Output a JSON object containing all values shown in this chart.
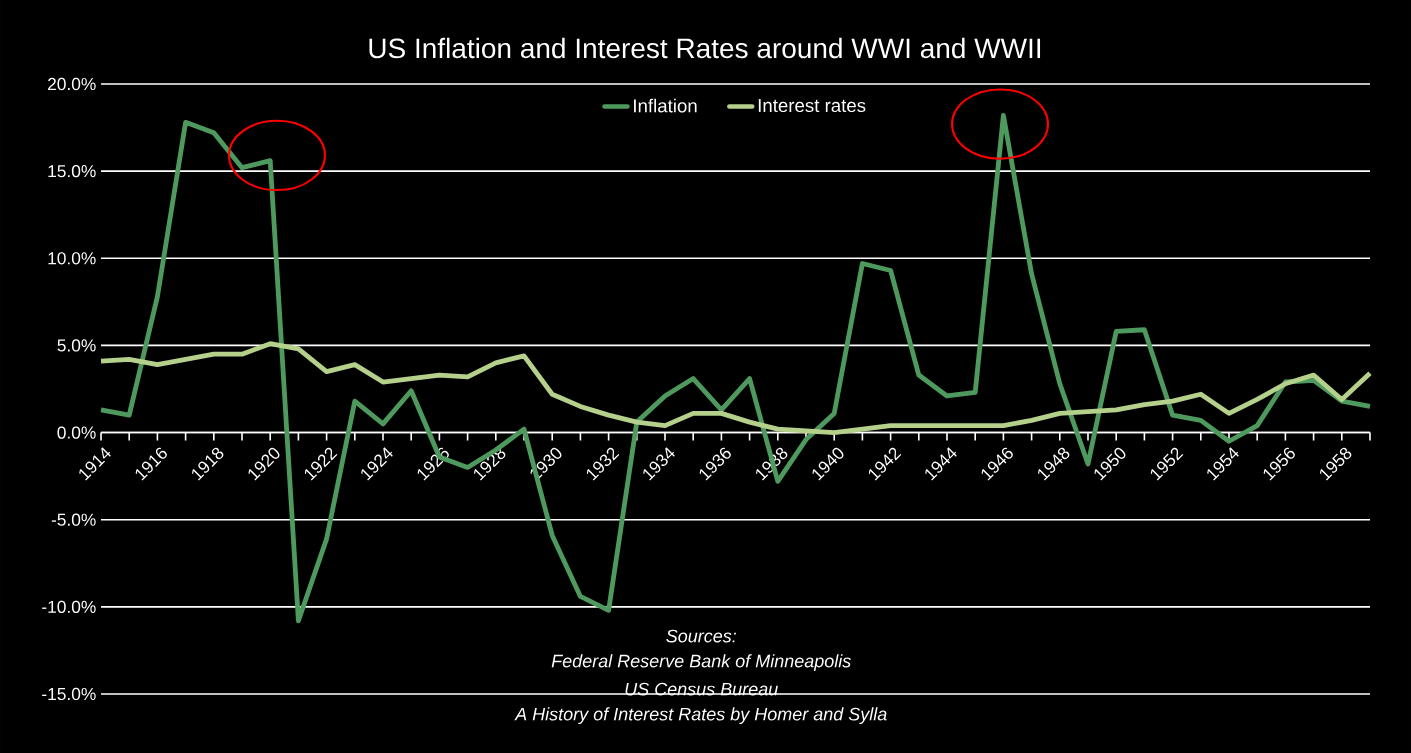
{
  "chart_data": {
    "type": "line",
    "title": "US Inflation and Interest Rates around WWI and WWII",
    "x": [
      1914,
      1915,
      1916,
      1917,
      1918,
      1919,
      1920,
      1921,
      1922,
      1923,
      1924,
      1925,
      1926,
      1927,
      1928,
      1929,
      1930,
      1931,
      1932,
      1933,
      1934,
      1935,
      1936,
      1937,
      1938,
      1939,
      1940,
      1941,
      1942,
      1943,
      1944,
      1945,
      1946,
      1947,
      1948,
      1949,
      1950,
      1951,
      1952,
      1953,
      1954,
      1955,
      1956,
      1957,
      1958,
      1959
    ],
    "series": [
      {
        "name": "Inflation",
        "color": "#4e9a5e",
        "values": [
          1.3,
          1.0,
          7.8,
          17.8,
          17.2,
          15.2,
          15.6,
          -10.8,
          -6.1,
          1.8,
          0.5,
          2.4,
          -1.4,
          -2.0,
          -1.0,
          0.2,
          -5.9,
          -9.4,
          -10.2,
          0.6,
          2.1,
          3.1,
          1.3,
          3.1,
          -2.8,
          -0.4,
          1.1,
          9.7,
          9.3,
          3.3,
          2.1,
          2.3,
          18.2,
          9.1,
          2.8,
          -1.8,
          5.8,
          5.9,
          1.0,
          0.7,
          -0.5,
          0.4,
          2.9,
          3.0,
          1.8,
          1.5
        ]
      },
      {
        "name": "Interest rates",
        "color": "#b5d08a",
        "values": [
          4.1,
          4.2,
          3.9,
          4.2,
          4.5,
          4.5,
          5.1,
          4.8,
          3.5,
          3.9,
          2.9,
          3.1,
          3.3,
          3.2,
          4.0,
          4.4,
          2.2,
          1.5,
          1.0,
          0.6,
          0.4,
          1.1,
          1.1,
          0.6,
          0.2,
          0.1,
          0.0,
          0.2,
          0.4,
          0.4,
          0.4,
          0.4,
          0.4,
          0.7,
          1.1,
          1.2,
          1.3,
          1.6,
          1.8,
          2.2,
          1.1,
          1.9,
          2.8,
          3.3,
          1.9,
          3.4
        ]
      }
    ],
    "xlim": [
      1914,
      1959
    ],
    "xticks": [
      1914,
      {
        "value": 1915,
        "label": null
      },
      1916,
      {
        "value": 1917,
        "label": null
      },
      1918,
      {
        "value": 1919,
        "label": null
      },
      1920,
      {
        "value": 1921,
        "label": null
      },
      1922,
      {
        "value": 1923,
        "label": null
      },
      1924,
      {
        "value": 1925,
        "label": null
      },
      1926,
      {
        "value": 1927,
        "label": null
      },
      1928,
      {
        "value": 1929,
        "label": null
      },
      1930,
      {
        "value": 1931,
        "label": null
      },
      1932,
      {
        "value": 1933,
        "label": null
      },
      1934,
      {
        "value": 1935,
        "label": null
      },
      1936,
      {
        "value": 1937,
        "label": null
      },
      1938,
      {
        "value": 1939,
        "label": null
      },
      1940,
      {
        "value": 1941,
        "label": null
      },
      1942,
      {
        "value": 1943,
        "label": null
      },
      1944,
      {
        "value": 1945,
        "label": null
      },
      1946,
      {
        "value": 1947,
        "label": null
      },
      1948,
      {
        "value": 1949,
        "label": null
      },
      1950,
      {
        "value": 1951,
        "label": null
      },
      1952,
      {
        "value": 1953,
        "label": null
      },
      1954,
      {
        "value": 1955,
        "label": null
      },
      1956,
      {
        "value": 1957,
        "label": null
      },
      1958,
      {
        "value": 1959,
        "label": null
      }
    ],
    "ylim": [
      -15,
      20
    ],
    "yticks": [
      {
        "value": -15,
        "label": "-15.0%"
      },
      {
        "value": -10,
        "label": "-10.0%"
      },
      {
        "value": -5,
        "label": "-5.0%"
      },
      {
        "value": 0,
        "label": "0.0%"
      },
      {
        "value": 5,
        "label": "5.0%"
      },
      {
        "value": 10,
        "label": "10.0%"
      },
      {
        "value": 15,
        "label": "15.0%"
      },
      {
        "value": 20,
        "label": "20.0%"
      }
    ],
    "grid": "y",
    "legend": "top",
    "marker": "none",
    "line_style": "solid",
    "annotations": [
      "Sources:",
      "Federal Reserve Bank of Minneapolis",
      "US Census Bureau",
      "A History of Interest Rates by Homer and Sylla"
    ]
  }
}
